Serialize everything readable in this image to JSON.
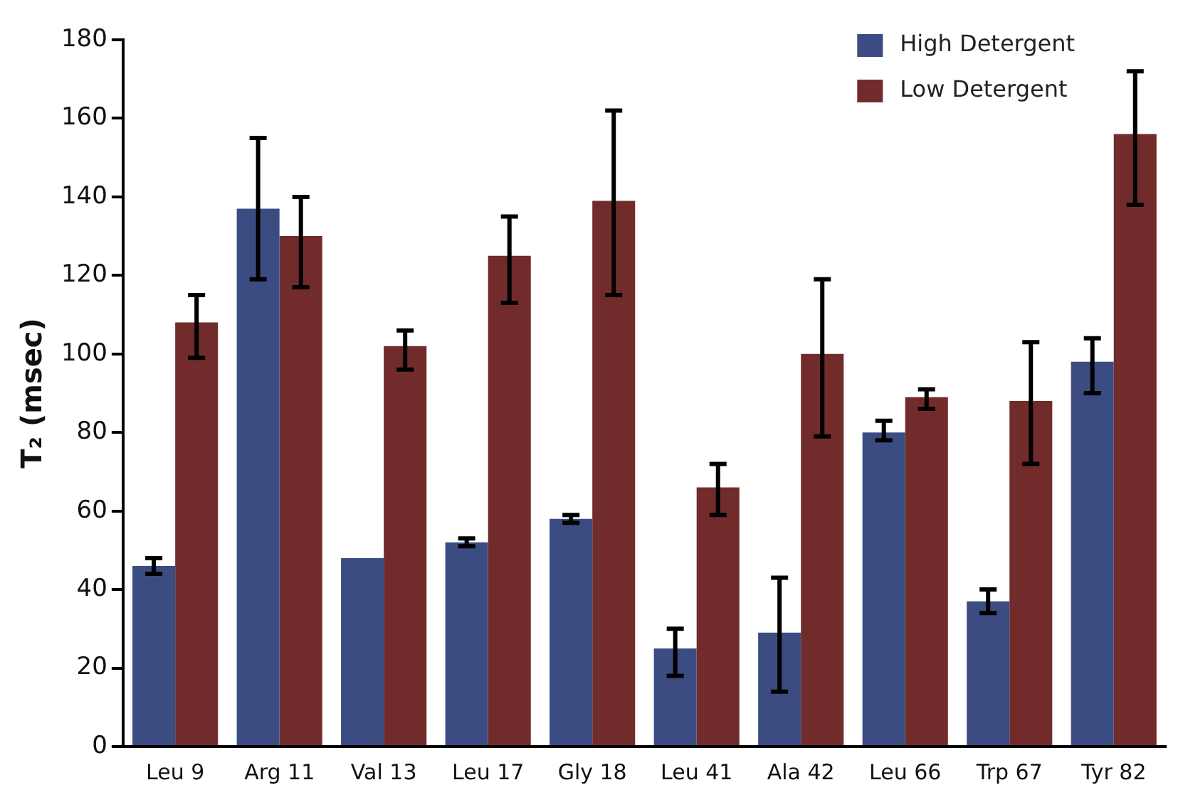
{
  "chart_data": {
    "type": "bar",
    "ylabel": "T₂ (msec)",
    "categories": [
      "Leu 9",
      "Arg 11",
      "Val 13",
      "Leu 17",
      "Gly 18",
      "Leu 41",
      "Ala 42",
      "Leu 66",
      "Trp 67",
      "Tyr 82"
    ],
    "series": [
      {
        "name": "High Detergent",
        "color": "#3b4c82",
        "values": [
          46,
          137,
          48,
          52,
          58,
          25,
          29,
          80,
          37,
          98
        ],
        "errors": [
          [
            44,
            48
          ],
          [
            119,
            155
          ],
          null,
          [
            51,
            53
          ],
          [
            57,
            59
          ],
          [
            18,
            30
          ],
          [
            14,
            43
          ],
          [
            78,
            83
          ],
          [
            34,
            40
          ],
          [
            90,
            104
          ]
        ]
      },
      {
        "name": "Low Detergent",
        "color": "#722b2b",
        "values": [
          108,
          130,
          102,
          125,
          139,
          66,
          100,
          89,
          88,
          156
        ],
        "errors": [
          [
            99,
            115
          ],
          [
            117,
            140
          ],
          [
            96,
            106
          ],
          [
            113,
            135
          ],
          [
            115,
            162
          ],
          [
            59,
            72
          ],
          [
            79,
            119
          ],
          [
            86,
            91
          ],
          [
            72,
            103
          ],
          [
            138,
            172
          ]
        ]
      }
    ],
    "ylim": [
      0,
      180
    ],
    "yticks": [
      0,
      20,
      40,
      60,
      80,
      100,
      120,
      140,
      160,
      180
    ],
    "grid": false,
    "legend": "top right"
  }
}
